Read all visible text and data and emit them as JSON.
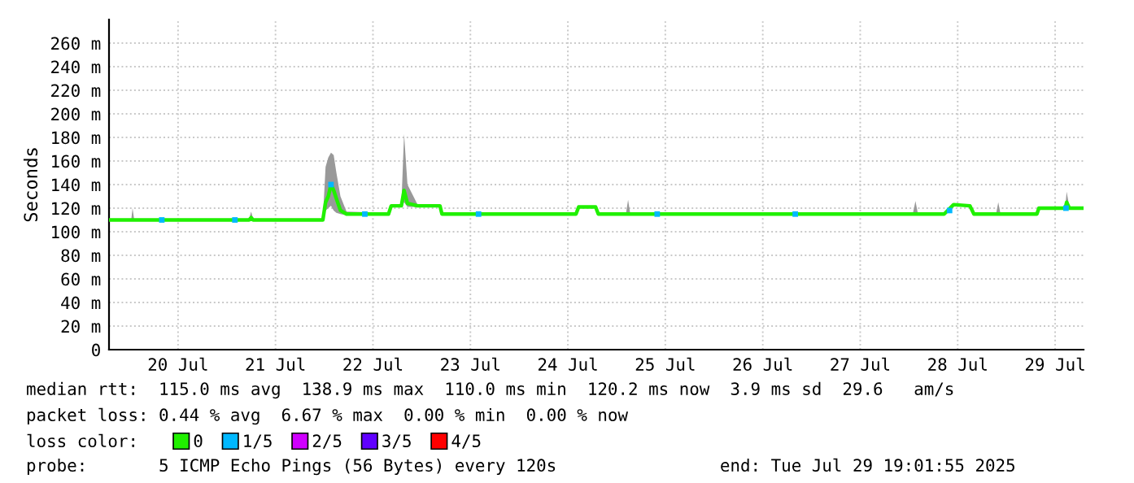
{
  "chart_data": {
    "type": "line",
    "ylabel": "Seconds",
    "ylim": [
      0,
      280
    ],
    "yticks": [
      0,
      {
        "value": 20,
        "label": "20 m"
      },
      {
        "value": 40,
        "label": "40 m"
      },
      {
        "value": 60,
        "label": "60 m"
      },
      {
        "value": 80,
        "label": "80 m"
      },
      {
        "value": 100,
        "label": "100 m"
      },
      {
        "value": 120,
        "label": "120 m"
      },
      {
        "value": 140,
        "label": "140 m"
      },
      {
        "value": 160,
        "label": "160 m"
      },
      {
        "value": 180,
        "label": "180 m"
      },
      {
        "value": 200,
        "label": "200 m"
      },
      {
        "value": 220,
        "label": "220 m"
      },
      {
        "value": 240,
        "label": "240 m"
      },
      {
        "value": 260,
        "label": "260 m"
      }
    ],
    "xlim": [
      "2025-07-19T19:00",
      "2025-07-29T19:00"
    ],
    "xticks": [
      {
        "value": "2025-07-20T12:00",
        "label": "20 Jul"
      },
      {
        "value": "2025-07-21T12:00",
        "label": "21 Jul"
      },
      {
        "value": "2025-07-22T12:00",
        "label": "22 Jul"
      },
      {
        "value": "2025-07-23T12:00",
        "label": "23 Jul"
      },
      {
        "value": "2025-07-24T12:00",
        "label": "24 Jul"
      },
      {
        "value": "2025-07-25T12:00",
        "label": "25 Jul"
      },
      {
        "value": "2025-07-26T12:00",
        "label": "26 Jul"
      },
      {
        "value": "2025-07-27T12:00",
        "label": "27 Jul"
      },
      {
        "value": "2025-07-28T12:00",
        "label": "28 Jul"
      },
      {
        "value": "2025-07-29T12:00",
        "label": "29 Jul"
      }
    ],
    "grid": true,
    "legend": "bottom",
    "legend_title": "loss color:",
    "series": [
      {
        "name": "0",
        "color": "#20f000",
        "marker": "none",
        "x": [
          "2025-07-19T19:00",
          "2025-07-20T00:30",
          "2025-07-20T00:48",
          "2025-07-20T01:10",
          "2025-07-21T05:30",
          "2025-07-21T06:00",
          "2025-07-21T06:30",
          "2025-07-21T23:40",
          "2025-07-22T00:20",
          "2025-07-22T01:00",
          "2025-07-22T01:40",
          "2025-07-22T02:20",
          "2025-07-22T03:00",
          "2025-07-22T04:00",
          "2025-07-22T05:30",
          "2025-07-22T15:50",
          "2025-07-22T16:30",
          "2025-07-22T19:00",
          "2025-07-22T19:40",
          "2025-07-22T20:30",
          "2025-07-22T23:00",
          "2025-07-23T04:30",
          "2025-07-23T05:00",
          "2025-07-24T14:00",
          "2025-07-24T14:40",
          "2025-07-24T18:50",
          "2025-07-24T19:30",
          "2025-07-25T02:20",
          "2025-07-25T02:50",
          "2025-07-25T03:20",
          "2025-07-28T01:00",
          "2025-07-28T01:36",
          "2025-07-28T02:10",
          "2025-07-28T08:40",
          "2025-07-28T11:00",
          "2025-07-28T15:00",
          "2025-07-28T16:00",
          "2025-07-28T21:30",
          "2025-07-28T22:00",
          "2025-07-28T22:30",
          "2025-07-29T07:30",
          "2025-07-29T08:00",
          "2025-07-29T14:30",
          "2025-07-29T14:50",
          "2025-07-29T15:30",
          "2025-07-29T19:00"
        ],
        "values": [
          110,
          110,
          110,
          110,
          110,
          112,
          110,
          110,
          125,
          130,
          140,
          135,
          128,
          118,
          115,
          115,
          122,
          122,
          135,
          124,
          122,
          122,
          115,
          115,
          121,
          121,
          115,
          115,
          115,
          115,
          115,
          115,
          115,
          115,
          123,
          122,
          115,
          115,
          115,
          115,
          115,
          120,
          120,
          125,
          120,
          120
        ],
        "lower": [
          109,
          109,
          109,
          109,
          109,
          110,
          109,
          109,
          118,
          120,
          122,
          118,
          116,
          115,
          114,
          114,
          121,
          121,
          125,
          121,
          121,
          121,
          114,
          114,
          120,
          120,
          114,
          114,
          114,
          114,
          114,
          114,
          114,
          114,
          122,
          121,
          114,
          114,
          114,
          114,
          114,
          119,
          119,
          120,
          119,
          119
        ],
        "upper": [
          111,
          111,
          120,
          111,
          111,
          117,
          111,
          111,
          155,
          163,
          167,
          165,
          150,
          130,
          117,
          116,
          123,
          123,
          183,
          140,
          123,
          123,
          116,
          116,
          122,
          122,
          116,
          116,
          127,
          116,
          116,
          126,
          116,
          116,
          124,
          123,
          116,
          116,
          125,
          116,
          116,
          121,
          121,
          134,
          121,
          121
        ]
      },
      {
        "name": "1/5",
        "type": "scatter",
        "color": "#00b8ff",
        "marker": "square",
        "x": [
          "2025-07-20T08:00",
          "2025-07-21T02:00",
          "2025-07-22T01:40",
          "2025-07-22T10:00",
          "2025-07-23T14:00",
          "2025-07-25T10:00",
          "2025-07-26T20:00",
          "2025-07-28T10:00",
          "2025-07-29T14:40"
        ],
        "values": [
          110,
          110,
          140,
          115,
          115,
          115,
          115,
          118,
          120
        ]
      },
      {
        "name": "2/5",
        "type": "scatter",
        "color": "#d000ff",
        "marker": "square"
      },
      {
        "name": "3/5",
        "type": "scatter",
        "color": "#6000ff",
        "marker": "square"
      },
      {
        "name": "4/5",
        "type": "scatter",
        "color": "#ff0000",
        "marker": "square"
      }
    ],
    "annotations": [
      "median rtt:  115.0 ms avg  138.9 ms max  110.0 ms min  120.2 ms now  3.9 ms sd  29.6   am/s",
      "packet loss: 0.44 % avg  6.67 % max  0.00 % min  0.00 % now",
      "probe:       5 ICMP Echo Pings (56 Bytes) every 120s                end: Tue Jul 29 19:01:55 2025"
    ]
  }
}
